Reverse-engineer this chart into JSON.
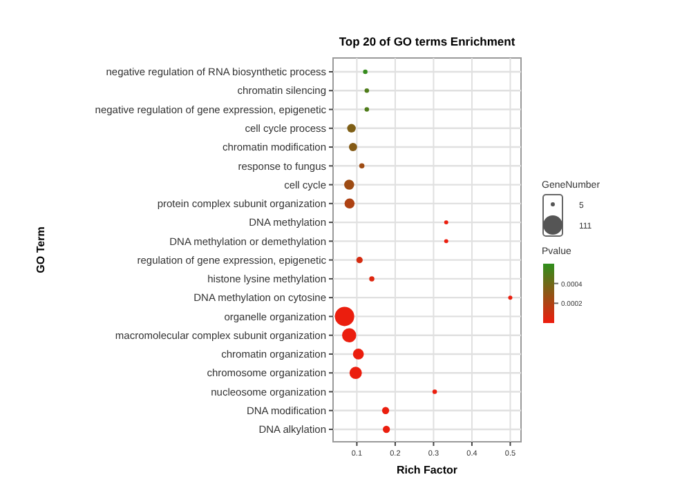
{
  "chart_data": {
    "type": "bubble",
    "title": "Top 20 of GO terms Enrichment",
    "xlabel": "Rich Factor",
    "ylabel": "GO Term",
    "legend_title": "GeneNumber",
    "clabel": "Pvalue",
    "categories": [
      "negative regulation of RNA biosynthetic process",
      "chromatin silencing",
      "negative regulation of gene expression, epigenetic",
      "cell cycle process",
      "chromatin modification",
      "response to fungus",
      "cell cycle",
      "protein complex subunit organization",
      "DNA methylation",
      "DNA methylation or demethylation",
      "regulation of gene expression, epigenetic",
      "histone lysine methylation",
      "DNA methylation on cytosine",
      "organelle organization",
      "macromolecular complex subunit organization",
      "chromatin organization",
      "chromosome organization",
      "nucleosome organization",
      "DNA modification",
      "DNA alkylation"
    ],
    "values": [
      0.122,
      0.126,
      0.126,
      0.086,
      0.09,
      0.113,
      0.08,
      0.081,
      0.333,
      0.333,
      0.107,
      0.139,
      0.5,
      0.068,
      0.08,
      0.104,
      0.097,
      0.303,
      0.175,
      0.177
    ],
    "sizes": [
      6,
      6,
      6,
      22,
      20,
      8,
      30,
      30,
      5,
      5,
      12,
      8,
      5,
      111,
      60,
      35,
      45,
      6,
      15,
      15
    ],
    "cvalues": [
      0.00058,
      0.0005,
      0.0005,
      0.00035,
      0.00033,
      0.00025,
      0.00025,
      0.0002,
      1e-05,
      1e-05,
      8e-05,
      5e-05,
      1e-05,
      1e-05,
      1e-05,
      1e-05,
      1e-05,
      1e-05,
      1e-05,
      1e-05
    ],
    "size_legend": [
      {
        "value": 5,
        "label": "5"
      },
      {
        "value": 111,
        "label": "111"
      }
    ],
    "clim": [
      0,
      0.0006
    ],
    "cticks": [
      0.0002,
      0.0004
    ],
    "xlim": [
      0.038,
      0.528
    ],
    "xticks": [
      0.1,
      0.2,
      0.3,
      0.4,
      0.5
    ],
    "orientation": "horizontal",
    "grid": true
  }
}
